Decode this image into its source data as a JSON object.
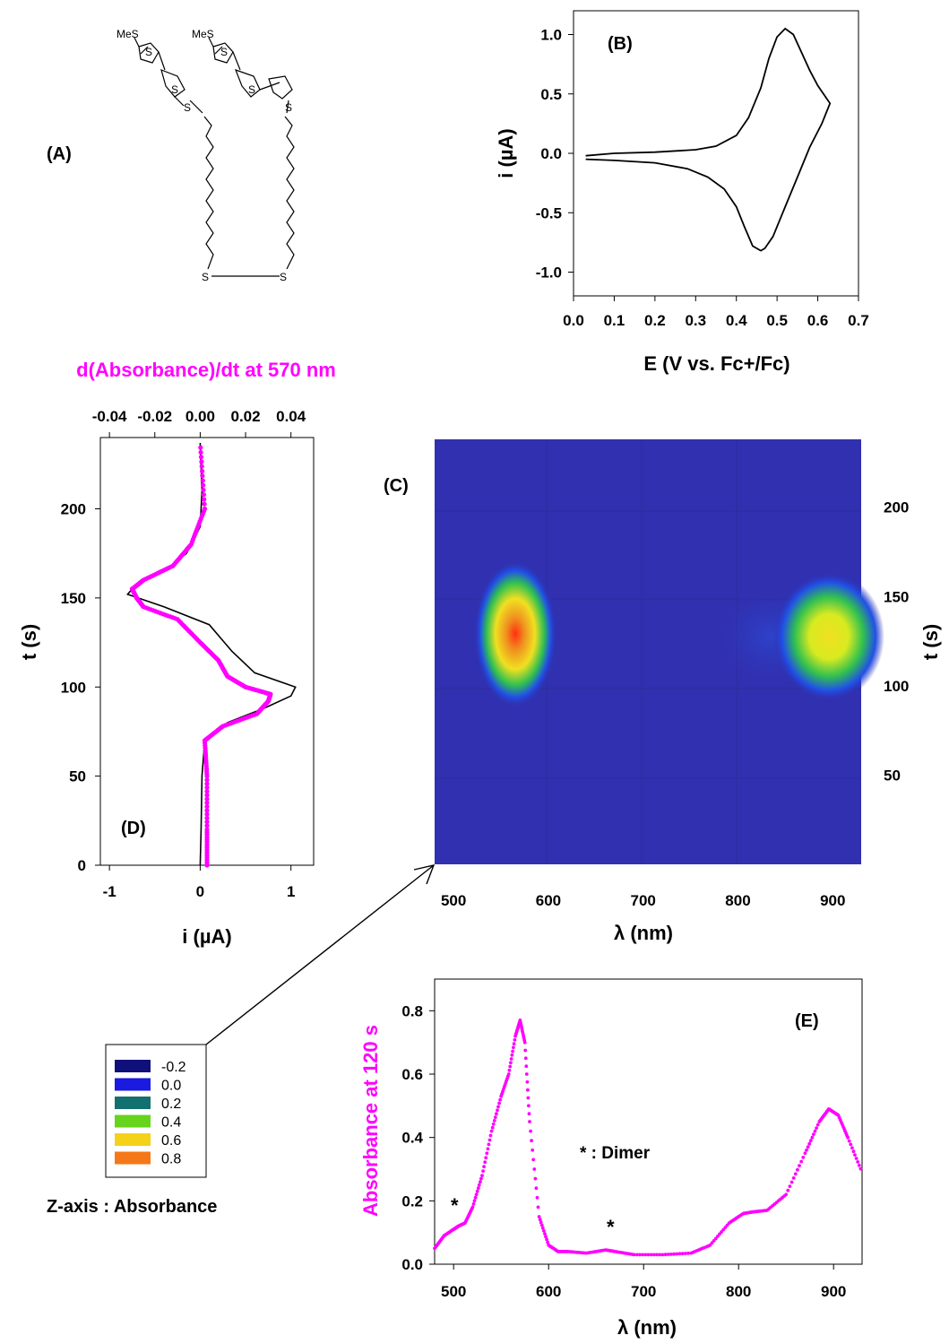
{
  "panels": {
    "A": {
      "label": "(A)",
      "atoms": {
        "mes_left": "MeS",
        "mes_right": "MeS",
        "s_ring1": "S",
        "s_ring2": "S",
        "s_ring3": "S",
        "s_ring4": "S",
        "s_link_left": "S",
        "s_link_right": "S",
        "s_disulfide_left": "S",
        "s_disulfide_right": "S"
      }
    },
    "B": {
      "label": "(B)"
    },
    "C": {
      "label": "(C)"
    },
    "D": {
      "label": "(D)"
    },
    "E": {
      "label": "(E)",
      "annotation": "* : Dimer",
      "star": "*"
    }
  },
  "legend": {
    "title": "Z-axis : Absorbance",
    "entries": [
      {
        "label": "-0.2",
        "color": "#10107a"
      },
      {
        "label": "0.0",
        "color": "#1a1ae0"
      },
      {
        "label": "0.2",
        "color": "#137070"
      },
      {
        "label": "0.4",
        "color": "#66d41c"
      },
      {
        "label": "0.6",
        "color": "#f5d21a"
      },
      {
        "label": "0.8",
        "color": "#f57818"
      }
    ]
  },
  "chart_data": [
    {
      "id": "B",
      "type": "line",
      "xlabel": "E (V vs. Fc+/Fc)",
      "ylabel": "i (µA)",
      "xlim": [
        0.0,
        0.7
      ],
      "ylim": [
        -1.2,
        1.2
      ],
      "x_ticks": [
        "0.0",
        "0.1",
        "0.2",
        "0.3",
        "0.4",
        "0.5",
        "0.6",
        "0.7"
      ],
      "y_ticks": [
        "-1.0",
        "-0.5",
        "0.0",
        "0.5",
        "1.0"
      ],
      "series": [
        {
          "color": "#000000",
          "x": [
            0.03,
            0.1,
            0.2,
            0.3,
            0.35,
            0.4,
            0.43,
            0.46,
            0.48,
            0.5,
            0.52,
            0.54,
            0.56,
            0.58,
            0.6,
            0.62,
            0.63,
            0.61,
            0.58,
            0.55,
            0.52,
            0.49,
            0.47,
            0.46,
            0.44,
            0.42,
            0.4,
            0.37,
            0.33,
            0.28,
            0.2,
            0.1,
            0.03
          ],
          "y": [
            -0.02,
            0.0,
            0.01,
            0.03,
            0.06,
            0.15,
            0.3,
            0.55,
            0.8,
            0.98,
            1.05,
            1.0,
            0.85,
            0.7,
            0.57,
            0.47,
            0.42,
            0.25,
            0.05,
            -0.2,
            -0.45,
            -0.7,
            -0.8,
            -0.82,
            -0.78,
            -0.62,
            -0.45,
            -0.3,
            -0.2,
            -0.13,
            -0.08,
            -0.06,
            -0.05
          ]
        }
      ]
    },
    {
      "id": "D",
      "type": "line",
      "xlabel": "i (µA)",
      "ylabel": "t (s)",
      "top_axis_label": "d(Absorbance)/dt at 570 nm",
      "xlim": [
        -1.1,
        1.25
      ],
      "ylim": [
        0,
        240
      ],
      "top_xlim": [
        -0.044,
        0.05
      ],
      "x_ticks": [
        "-1",
        "0",
        "1"
      ],
      "top_ticks": [
        "-0.04",
        "-0.02",
        "0.00",
        "0.02",
        "0.04"
      ],
      "y_ticks": [
        "0",
        "50",
        "100",
        "150",
        "200"
      ],
      "series": [
        {
          "color": "#000000",
          "axis": "current",
          "t": [
            0,
            20,
            50,
            70,
            80,
            88,
            95,
            100,
            108,
            120,
            135,
            145,
            152,
            158,
            165,
            175,
            190,
            210,
            237
          ],
          "x": [
            0.0,
            0.01,
            0.02,
            0.05,
            0.3,
            0.7,
            1.0,
            1.05,
            0.6,
            0.35,
            0.1,
            -0.4,
            -0.8,
            -0.7,
            -0.4,
            -0.15,
            0.0,
            0.02,
            0.0
          ]
        },
        {
          "color": "#ff00ff",
          "axis": "dAbs/dt",
          "t": [
            0,
            20,
            50,
            70,
            78,
            85,
            92,
            96,
            100,
            106,
            115,
            125,
            138,
            145,
            150,
            155,
            160,
            168,
            180,
            200,
            237
          ],
          "x": [
            0.003,
            0.003,
            0.003,
            0.002,
            0.01,
            0.025,
            0.03,
            0.031,
            0.02,
            0.012,
            0.008,
            0.0,
            -0.01,
            -0.025,
            -0.028,
            -0.03,
            -0.025,
            -0.012,
            -0.004,
            0.002,
            0.0
          ]
        }
      ]
    },
    {
      "id": "C",
      "type": "heatmap",
      "xlabel": "λ (nm)",
      "ylabel": "t (s)",
      "xlim": [
        480,
        930
      ],
      "ylim": [
        0,
        238
      ],
      "x_ticks": [
        "500",
        "600",
        "700",
        "800",
        "900"
      ],
      "y_ticks": [
        "50",
        "100",
        "150",
        "200"
      ],
      "peaks": [
        {
          "wavelength": 570,
          "time": 128,
          "absorbance": 0.8
        },
        {
          "wavelength": 898,
          "time": 128,
          "absorbance": 0.55
        }
      ]
    },
    {
      "id": "E",
      "type": "line",
      "xlabel": "λ (nm)",
      "ylabel": "Absorbance at 120 s",
      "xlim": [
        480,
        930
      ],
      "ylim": [
        0,
        0.9
      ],
      "x_ticks": [
        "500",
        "600",
        "700",
        "800",
        "900"
      ],
      "y_ticks": [
        "0.0",
        "0.2",
        "0.4",
        "0.6",
        "0.8"
      ],
      "series": [
        {
          "color": "#ff00ff",
          "x": [
            480,
            490,
            500,
            505,
            512,
            520,
            530,
            540,
            550,
            558,
            565,
            570,
            575,
            580,
            590,
            600,
            610,
            620,
            640,
            660,
            670,
            690,
            720,
            750,
            770,
            790,
            805,
            815,
            830,
            850,
            870,
            885,
            895,
            905,
            915,
            930
          ],
          "y": [
            0.05,
            0.09,
            0.11,
            0.12,
            0.13,
            0.18,
            0.28,
            0.42,
            0.53,
            0.6,
            0.72,
            0.77,
            0.7,
            0.45,
            0.15,
            0.06,
            0.04,
            0.04,
            0.035,
            0.045,
            0.04,
            0.03,
            0.03,
            0.035,
            0.06,
            0.13,
            0.16,
            0.165,
            0.17,
            0.22,
            0.35,
            0.45,
            0.49,
            0.47,
            0.4,
            0.29
          ]
        }
      ]
    }
  ]
}
